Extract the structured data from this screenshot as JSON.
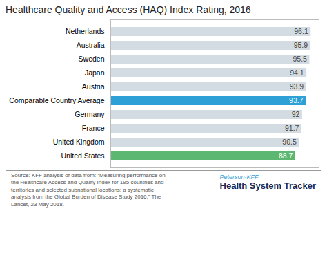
{
  "chart_data": {
    "type": "bar",
    "orientation": "horizontal",
    "title": "Healthcare Quality and Access (HAQ) Index Rating, 2016",
    "categories": [
      "Netherlands",
      "Australia",
      "Sweden",
      "Japan",
      "Austria",
      "Comparable Country Average",
      "Germany",
      "France",
      "United Kingdom",
      "United States"
    ],
    "values": [
      96.1,
      95.9,
      95.5,
      94.1,
      93.9,
      93.7,
      92.0,
      91.7,
      90.5,
      88.7
    ],
    "colors": [
      "#d3dbe3",
      "#d3dbe3",
      "#d3dbe3",
      "#d3dbe3",
      "#d3dbe3",
      "#2ea0d5",
      "#d3dbe3",
      "#d3dbe3",
      "#d3dbe3",
      "#5cb870"
    ],
    "xlim": [
      0,
      100
    ],
    "data_labels": true,
    "tick_labels": "y",
    "grid": false,
    "annotations": [
      "Source: KFF analysis of data from: “Measuring performance on\nthe Healthcare Access and Quality Index for 195 countries and\nterritories and selected subnational locations: a systematic\nanalysis from the Global Burden of Disease Study 2016,” The\nLancet, 23 May 2018.",
      "Peterson-KFF",
      "Health System Tracker"
    ]
  }
}
